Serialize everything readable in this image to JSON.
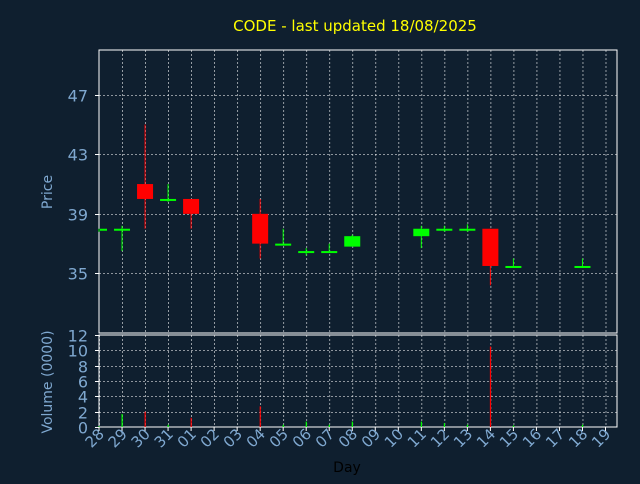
{
  "colors": {
    "background": "#0f1f2f",
    "title": "#ffff00",
    "axis_text": "#7fa8d0",
    "day_label": "#000000",
    "frame": "#ffffff",
    "grid": "#ffffff",
    "up": "#00ff00",
    "down": "#ff0000"
  },
  "chart_data": [
    {
      "type": "candlestick",
      "title": "CODE - last updated 18/08/2025",
      "ylabel": "Price",
      "ylim": [
        31,
        50
      ],
      "yticks": [
        "47",
        "43",
        "39",
        "35"
      ],
      "ytick_values": [
        47,
        43,
        39,
        35
      ],
      "grid": true,
      "categories": [
        "28",
        "29",
        "30",
        "31",
        "01",
        "02",
        "03",
        "04",
        "05",
        "06",
        "07",
        "08",
        "09",
        "10",
        "11",
        "12",
        "13",
        "14",
        "15",
        "16",
        "17",
        "18",
        "19"
      ],
      "candles": [
        {
          "day": "28",
          "open": 37.9,
          "high": 38.0,
          "low": 37.8,
          "close": 38.0
        },
        {
          "day": "29",
          "open": 38.0,
          "high": 38.2,
          "low": 36.5,
          "close": 38.0
        },
        {
          "day": "30",
          "open": 41.0,
          "high": 45.0,
          "low": 38.0,
          "close": 40.0
        },
        {
          "day": "31",
          "open": 40.0,
          "high": 41.0,
          "low": 39.8,
          "close": 40.0
        },
        {
          "day": "01",
          "open": 40.0,
          "high": 40.0,
          "low": 38.0,
          "close": 39.0
        },
        {
          "day": "04",
          "open": 39.0,
          "high": 40.0,
          "low": 36.0,
          "close": 37.0
        },
        {
          "day": "05",
          "open": 37.0,
          "high": 38.0,
          "low": 37.0,
          "close": 37.0
        },
        {
          "day": "06",
          "open": 36.5,
          "high": 36.7,
          "low": 36.2,
          "close": 36.5
        },
        {
          "day": "07",
          "open": 36.5,
          "high": 37.0,
          "low": 36.4,
          "close": 36.5
        },
        {
          "day": "08",
          "open": 36.8,
          "high": 37.6,
          "low": 36.8,
          "close": 37.5
        },
        {
          "day": "11",
          "open": 37.5,
          "high": 38.2,
          "low": 36.7,
          "close": 38.0
        },
        {
          "day": "12",
          "open": 38.0,
          "high": 38.2,
          "low": 37.8,
          "close": 38.0
        },
        {
          "day": "13",
          "open": 38.0,
          "high": 38.3,
          "low": 37.8,
          "close": 38.0
        },
        {
          "day": "14",
          "open": 38.0,
          "high": 38.0,
          "low": 34.2,
          "close": 35.5
        },
        {
          "day": "15",
          "open": 35.5,
          "high": 36.0,
          "low": 35.4,
          "close": 35.5
        },
        {
          "day": "18",
          "open": 35.5,
          "high": 36.0,
          "low": 35.4,
          "close": 35.5
        }
      ]
    },
    {
      "type": "bar",
      "ylabel": "Volume (0000)",
      "xlabel": "Day",
      "ylim": [
        0,
        12
      ],
      "yticks": [
        "12",
        "10",
        "8",
        "6",
        "4",
        "2",
        "0"
      ],
      "ytick_values": [
        12,
        10,
        8,
        6,
        4,
        2,
        0
      ],
      "grid": true,
      "categories": [
        "28",
        "29",
        "30",
        "31",
        "01",
        "02",
        "03",
        "04",
        "05",
        "06",
        "07",
        "08",
        "09",
        "10",
        "11",
        "12",
        "13",
        "14",
        "15",
        "16",
        "17",
        "18",
        "19"
      ],
      "bars": [
        {
          "day": "28",
          "value": 0.1,
          "direction": "up"
        },
        {
          "day": "29",
          "value": 1.7,
          "direction": "up"
        },
        {
          "day": "30",
          "value": 2.0,
          "direction": "down"
        },
        {
          "day": "31",
          "value": 0.3,
          "direction": "up"
        },
        {
          "day": "01",
          "value": 1.2,
          "direction": "down"
        },
        {
          "day": "04",
          "value": 2.7,
          "direction": "down"
        },
        {
          "day": "05",
          "value": 0.3,
          "direction": "up"
        },
        {
          "day": "06",
          "value": 0.7,
          "direction": "up"
        },
        {
          "day": "07",
          "value": 0.3,
          "direction": "up"
        },
        {
          "day": "08",
          "value": 0.7,
          "direction": "up"
        },
        {
          "day": "11",
          "value": 0.7,
          "direction": "up"
        },
        {
          "day": "12",
          "value": 0.5,
          "direction": "up"
        },
        {
          "day": "13",
          "value": 0.3,
          "direction": "up"
        },
        {
          "day": "14",
          "value": 10.5,
          "direction": "down"
        },
        {
          "day": "15",
          "value": 0.2,
          "direction": "up"
        },
        {
          "day": "18",
          "value": 0.3,
          "direction": "up"
        }
      ]
    }
  ]
}
